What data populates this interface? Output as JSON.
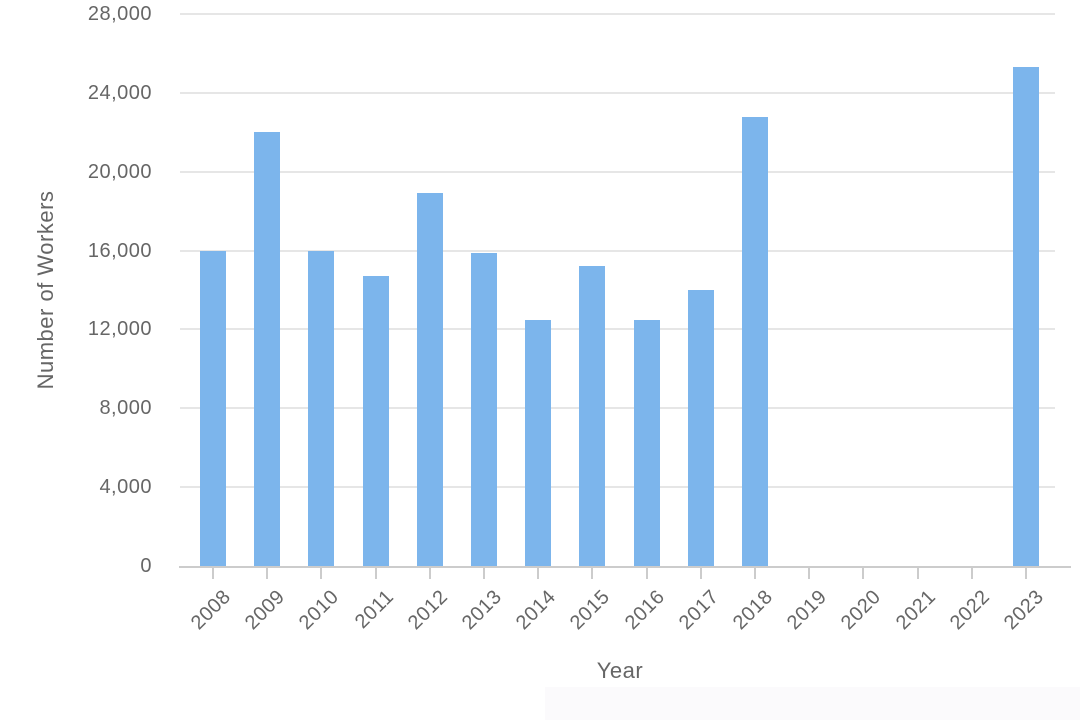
{
  "chart_data": {
    "type": "bar",
    "title": "",
    "xlabel": "Year",
    "ylabel": "Number of Workers",
    "categories": [
      "2008",
      "2009",
      "2010",
      "2011",
      "2012",
      "2013",
      "2014",
      "2015",
      "2016",
      "2017",
      "2018",
      "2019",
      "2020",
      "2021",
      "2022",
      "2023"
    ],
    "values": [
      16000,
      22000,
      16000,
      14700,
      18900,
      15900,
      12500,
      15200,
      12500,
      14000,
      22800,
      0,
      0,
      0,
      0,
      25300
    ],
    "ylim": [
      0,
      28000
    ],
    "ytick_step": 4000,
    "ytick_labels": [
      "0",
      "4,000",
      "8,000",
      "12,000",
      "16,000",
      "20,000",
      "24,000",
      "28,000"
    ],
    "grid": "horizontal",
    "legend_position": "none",
    "colors": {
      "bar": "#7cb5ec",
      "grid": "#e6e6e6",
      "axis_line": "#cccccc",
      "tick": "#cccccc",
      "label": "#666666",
      "title": "#666666"
    }
  }
}
